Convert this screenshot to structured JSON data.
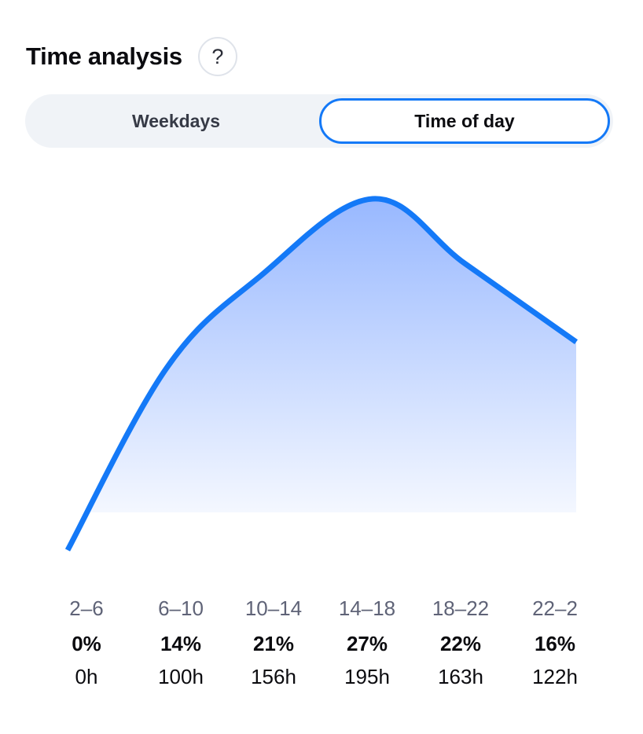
{
  "header": {
    "title": "Time analysis",
    "help_icon_glyph": "?"
  },
  "tabs": [
    {
      "label": "Weekdays",
      "selected": false
    },
    {
      "label": "Time of day",
      "selected": true
    }
  ],
  "colors": {
    "accent": "#1479f7",
    "fill_top": "#98b8ff",
    "fill_bottom": "#ffffff"
  },
  "chart_data": {
    "type": "area",
    "categories": [
      "2–6",
      "6–10",
      "10–14",
      "14–18",
      "18–22",
      "22–2"
    ],
    "series": [
      {
        "values": [
          0,
          14,
          21,
          27,
          22,
          16
        ],
        "value_labels": [
          "0%",
          "14%",
          "21%",
          "27%",
          "22%",
          "16%"
        ],
        "hours": [
          "0h",
          "100h",
          "156h",
          "195h",
          "163h",
          "122h"
        ]
      }
    ],
    "ylim": [
      0,
      27
    ],
    "grid": false,
    "smooth": true
  }
}
